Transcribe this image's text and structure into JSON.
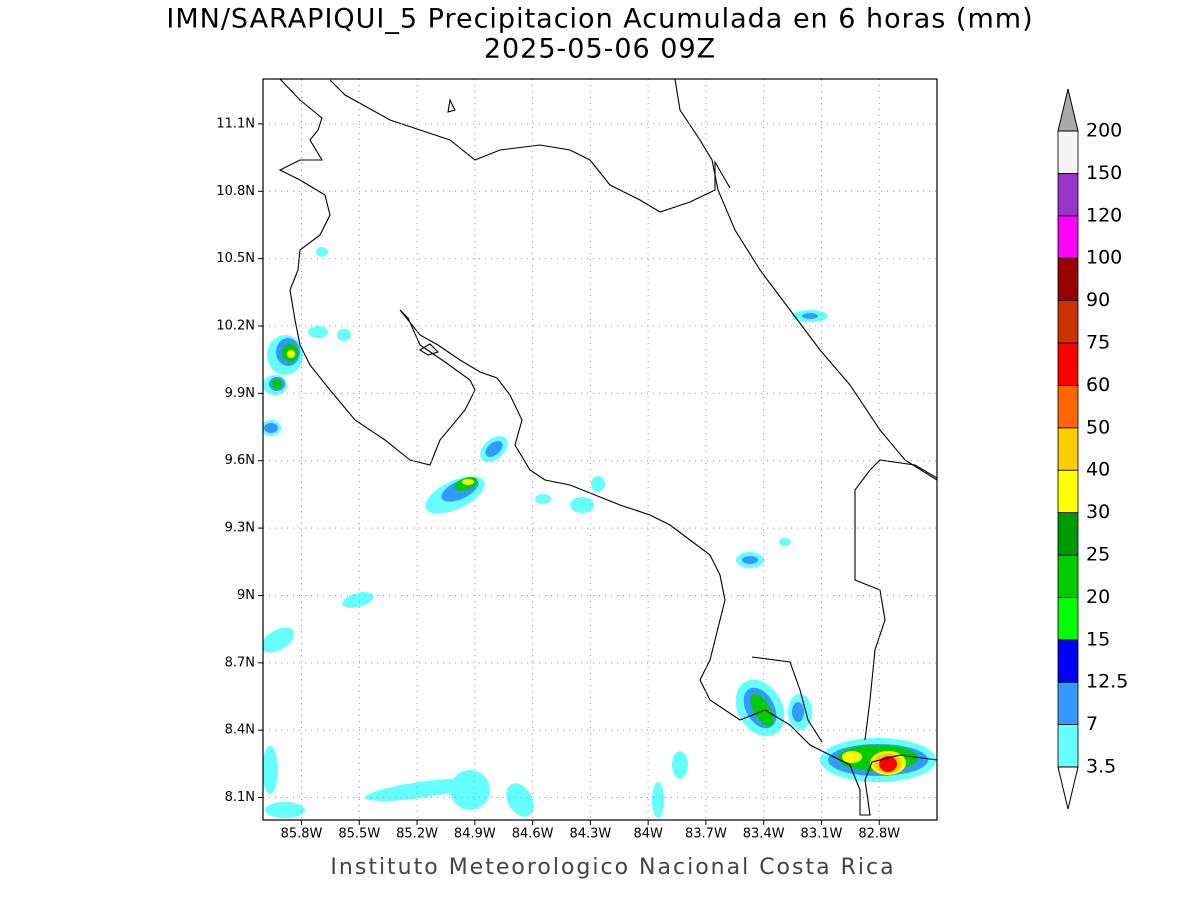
{
  "map": {
    "title": "IMN/SARAPIQUI_5 Precipitacion Acumulada en 6 horas (mm)",
    "subtitle": "2025-05-06 09Z",
    "xlim": [
      -86.0,
      -82.5
    ],
    "ylim": [
      8.0,
      11.3
    ],
    "xticks": [
      {
        "value": -85.8,
        "label": "85.8W"
      },
      {
        "value": -85.5,
        "label": "85.5W"
      },
      {
        "value": -85.2,
        "label": "85.2W"
      },
      {
        "value": -84.9,
        "label": "84.9W"
      },
      {
        "value": -84.6,
        "label": "84.6W"
      },
      {
        "value": -84.3,
        "label": "84.3W"
      },
      {
        "value": -84.0,
        "label": "84W"
      },
      {
        "value": -83.7,
        "label": "83.7W"
      },
      {
        "value": -83.4,
        "label": "83.4W"
      },
      {
        "value": -83.1,
        "label": "83.1W"
      },
      {
        "value": -82.8,
        "label": "82.8W"
      }
    ],
    "yticks": [
      {
        "value": 8.1,
        "label": "8.1N"
      },
      {
        "value": 8.4,
        "label": "8.4N"
      },
      {
        "value": 8.7,
        "label": "8.7N"
      },
      {
        "value": 9.0,
        "label": "9N"
      },
      {
        "value": 9.3,
        "label": "9.3N"
      },
      {
        "value": 9.6,
        "label": "9.6N"
      },
      {
        "value": 9.9,
        "label": "9.9N"
      },
      {
        "value": 10.2,
        "label": "10.2N"
      },
      {
        "value": 10.5,
        "label": "10.5N"
      },
      {
        "value": 10.8,
        "label": "10.8N"
      },
      {
        "value": 11.1,
        "label": "11.1N"
      }
    ],
    "grid": true,
    "footer": "Instituto Meteorologico Nacional Costa Rica",
    "colorbar": {
      "levels": [
        3.5,
        7,
        12.5,
        15,
        20,
        25,
        30,
        40,
        50,
        60,
        75,
        90,
        100,
        120,
        150,
        200
      ],
      "colors": [
        "#66ffff",
        "#3399ff",
        "#0000ff",
        "#00ff00",
        "#00cc00",
        "#009900",
        "#ffff00",
        "#ffcc00",
        "#ff6600",
        "#ff0000",
        "#cc3300",
        "#990000",
        "#ff00ff",
        "#9933cc",
        "#f5f5f5"
      ],
      "under_color": "#ffffff",
      "over_color": "#aaaaaa"
    }
  }
}
